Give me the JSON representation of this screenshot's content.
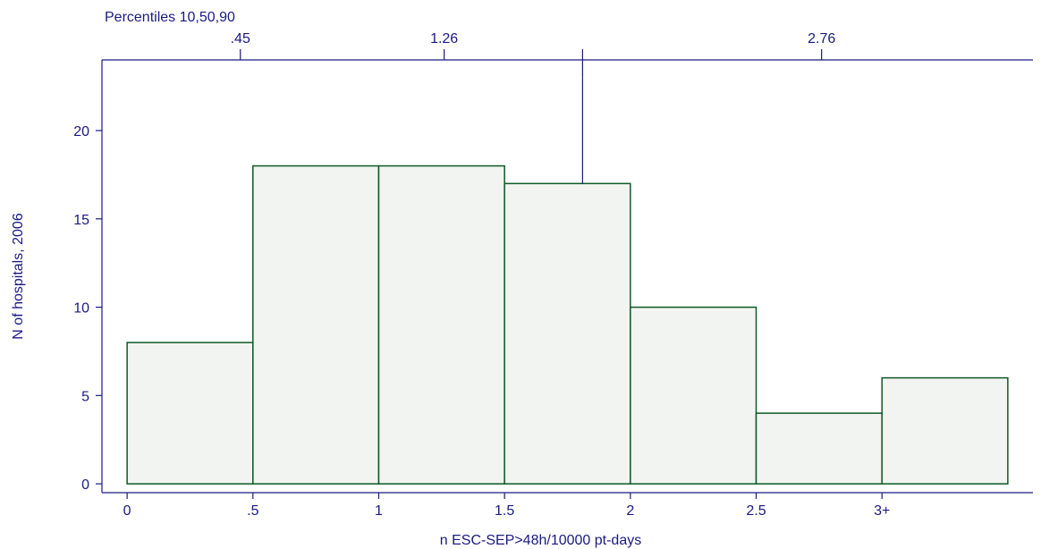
{
  "chart_data": {
    "type": "bar",
    "title": "",
    "xlabel": "n ESC-SEP>48h/10000 pt-days",
    "ylabel": "N of hospitals, 2006",
    "top_axis_title": "Percentiles 10,50,90",
    "bins": [
      {
        "x0": 0,
        "x1": 0.5,
        "value": 8
      },
      {
        "x0": 0.5,
        "x1": 1,
        "value": 18
      },
      {
        "x0": 1,
        "x1": 1.5,
        "value": 18
      },
      {
        "x0": 1.5,
        "x1": 2,
        "value": 17
      },
      {
        "x0": 2,
        "x1": 2.5,
        "value": 10
      },
      {
        "x0": 2.5,
        "x1": 3,
        "value": 4
      },
      {
        "x0": 3,
        "x1": 3.5,
        "value": 6
      }
    ],
    "xlim": [
      -0.1,
      3.6
    ],
    "ylim": [
      -0.5,
      24
    ],
    "x_ticks": [
      {
        "value": 0,
        "label": "0"
      },
      {
        "value": 0.5,
        "label": ".5"
      },
      {
        "value": 1,
        "label": "1"
      },
      {
        "value": 1.5,
        "label": "1.5"
      },
      {
        "value": 2,
        "label": "2"
      },
      {
        "value": 2.5,
        "label": "2.5"
      },
      {
        "value": 3,
        "label": "3+"
      }
    ],
    "y_ticks": [
      {
        "value": 0,
        "label": "0"
      },
      {
        "value": 5,
        "label": "5"
      },
      {
        "value": 10,
        "label": "10"
      },
      {
        "value": 15,
        "label": "15"
      },
      {
        "value": 20,
        "label": "20"
      }
    ],
    "top_ticks": [
      {
        "value": 0.45,
        "label": ".45"
      },
      {
        "value": 1.26,
        "label": "1.26"
      },
      {
        "value": 1.81,
        "label": ""
      },
      {
        "value": 2.76,
        "label": "2.76"
      }
    ],
    "reference_line": {
      "x": 1.81,
      "y_top": 23
    },
    "colors": {
      "axis": "#1a1a80",
      "bar_edge": "#0e5a24",
      "bar_fill": "#f2f4f2"
    },
    "grid": false,
    "legend": "none"
  }
}
